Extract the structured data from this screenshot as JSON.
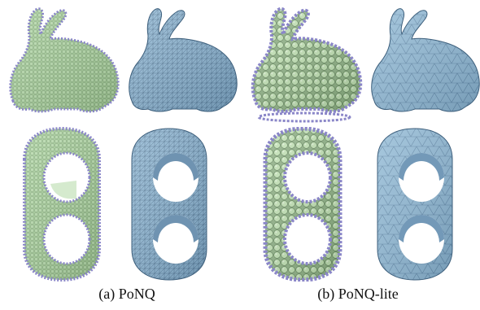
{
  "figure": {
    "captions": [
      {
        "id": "a",
        "text": "(a) PoNQ"
      },
      {
        "id": "b",
        "text": "(b) PoNQ-lite"
      }
    ]
  },
  "colors": {
    "green_fill": "#a9cf9e",
    "green_edge": "#6f8f68",
    "blue_fill": "#8fb6d2",
    "blue_edge": "#3d5f7c",
    "point_outline": "#8a86c8",
    "background": "#ffffff"
  }
}
